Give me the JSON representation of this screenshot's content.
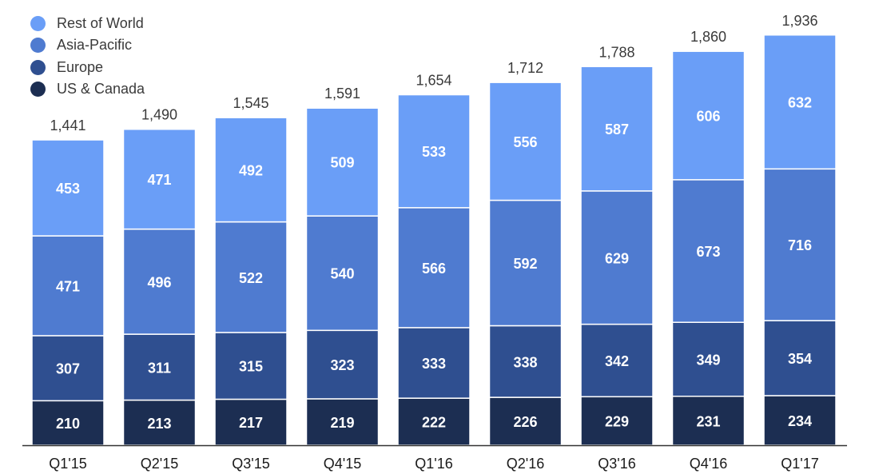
{
  "chart_data": {
    "type": "bar",
    "stacked": true,
    "title": "",
    "xlabel": "",
    "ylabel": "",
    "categories": [
      "Q1'15",
      "Q2'15",
      "Q3'15",
      "Q4'15",
      "Q1'16",
      "Q2'16",
      "Q3'16",
      "Q4'16",
      "Q1'17"
    ],
    "series": [
      {
        "name": "US & Canada",
        "color": "#1c2e52",
        "values": [
          210,
          213,
          217,
          219,
          222,
          226,
          229,
          231,
          234
        ]
      },
      {
        "name": "Europe",
        "color": "#2f4f90",
        "values": [
          307,
          311,
          315,
          323,
          333,
          338,
          342,
          349,
          354
        ]
      },
      {
        "name": "Asia-Pacific",
        "color": "#4f7bd0",
        "values": [
          471,
          496,
          522,
          540,
          566,
          592,
          629,
          673,
          716
        ]
      },
      {
        "name": "Rest of World",
        "color": "#6a9ef7",
        "values": [
          453,
          471,
          492,
          509,
          533,
          556,
          587,
          606,
          632
        ]
      }
    ],
    "totals": [
      "1,441",
      "1,490",
      "1,545",
      "1,591",
      "1,654",
      "1,712",
      "1,788",
      "1,860",
      "1,936"
    ],
    "legend_order": [
      "Rest of World",
      "Asia-Pacific",
      "Europe",
      "US & Canada"
    ],
    "legend_position": "top-left",
    "ylim": [
      0,
      2000
    ],
    "grid": false,
    "axis_color": "#333333"
  }
}
